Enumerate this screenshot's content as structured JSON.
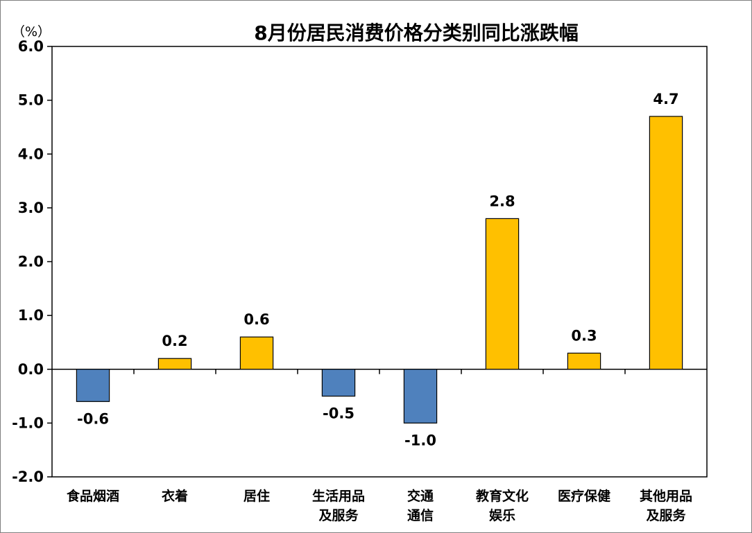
{
  "chart_data": {
    "type": "bar",
    "title": "8月份居民消费价格分类别同比涨跌幅",
    "unit_label": "（%）",
    "categories": [
      [
        "食品烟酒"
      ],
      [
        "衣着"
      ],
      [
        "居住"
      ],
      [
        "生活用品",
        "及服务"
      ],
      [
        "交通",
        "通信"
      ],
      [
        "教育文化",
        "娱乐"
      ],
      [
        "医疗保健"
      ],
      [
        "其他用品",
        "及服务"
      ]
    ],
    "values": [
      -0.6,
      0.2,
      0.6,
      -0.5,
      -1.0,
      2.8,
      0.3,
      4.7
    ],
    "data_labels": [
      "-0.6",
      "0.2",
      "0.6",
      "-0.5",
      "-1.0",
      "2.8",
      "0.3",
      "4.7"
    ],
    "y_ticks": [
      "6.0",
      "5.0",
      "4.0",
      "3.0",
      "2.0",
      "1.0",
      "0.0",
      "-1.0",
      "-2.0"
    ],
    "ylim": [
      -2.0,
      6.0
    ],
    "grid": false,
    "colors": {
      "positive": "#FFC000",
      "negative": "#4F81BD",
      "edge": "#000000"
    }
  }
}
